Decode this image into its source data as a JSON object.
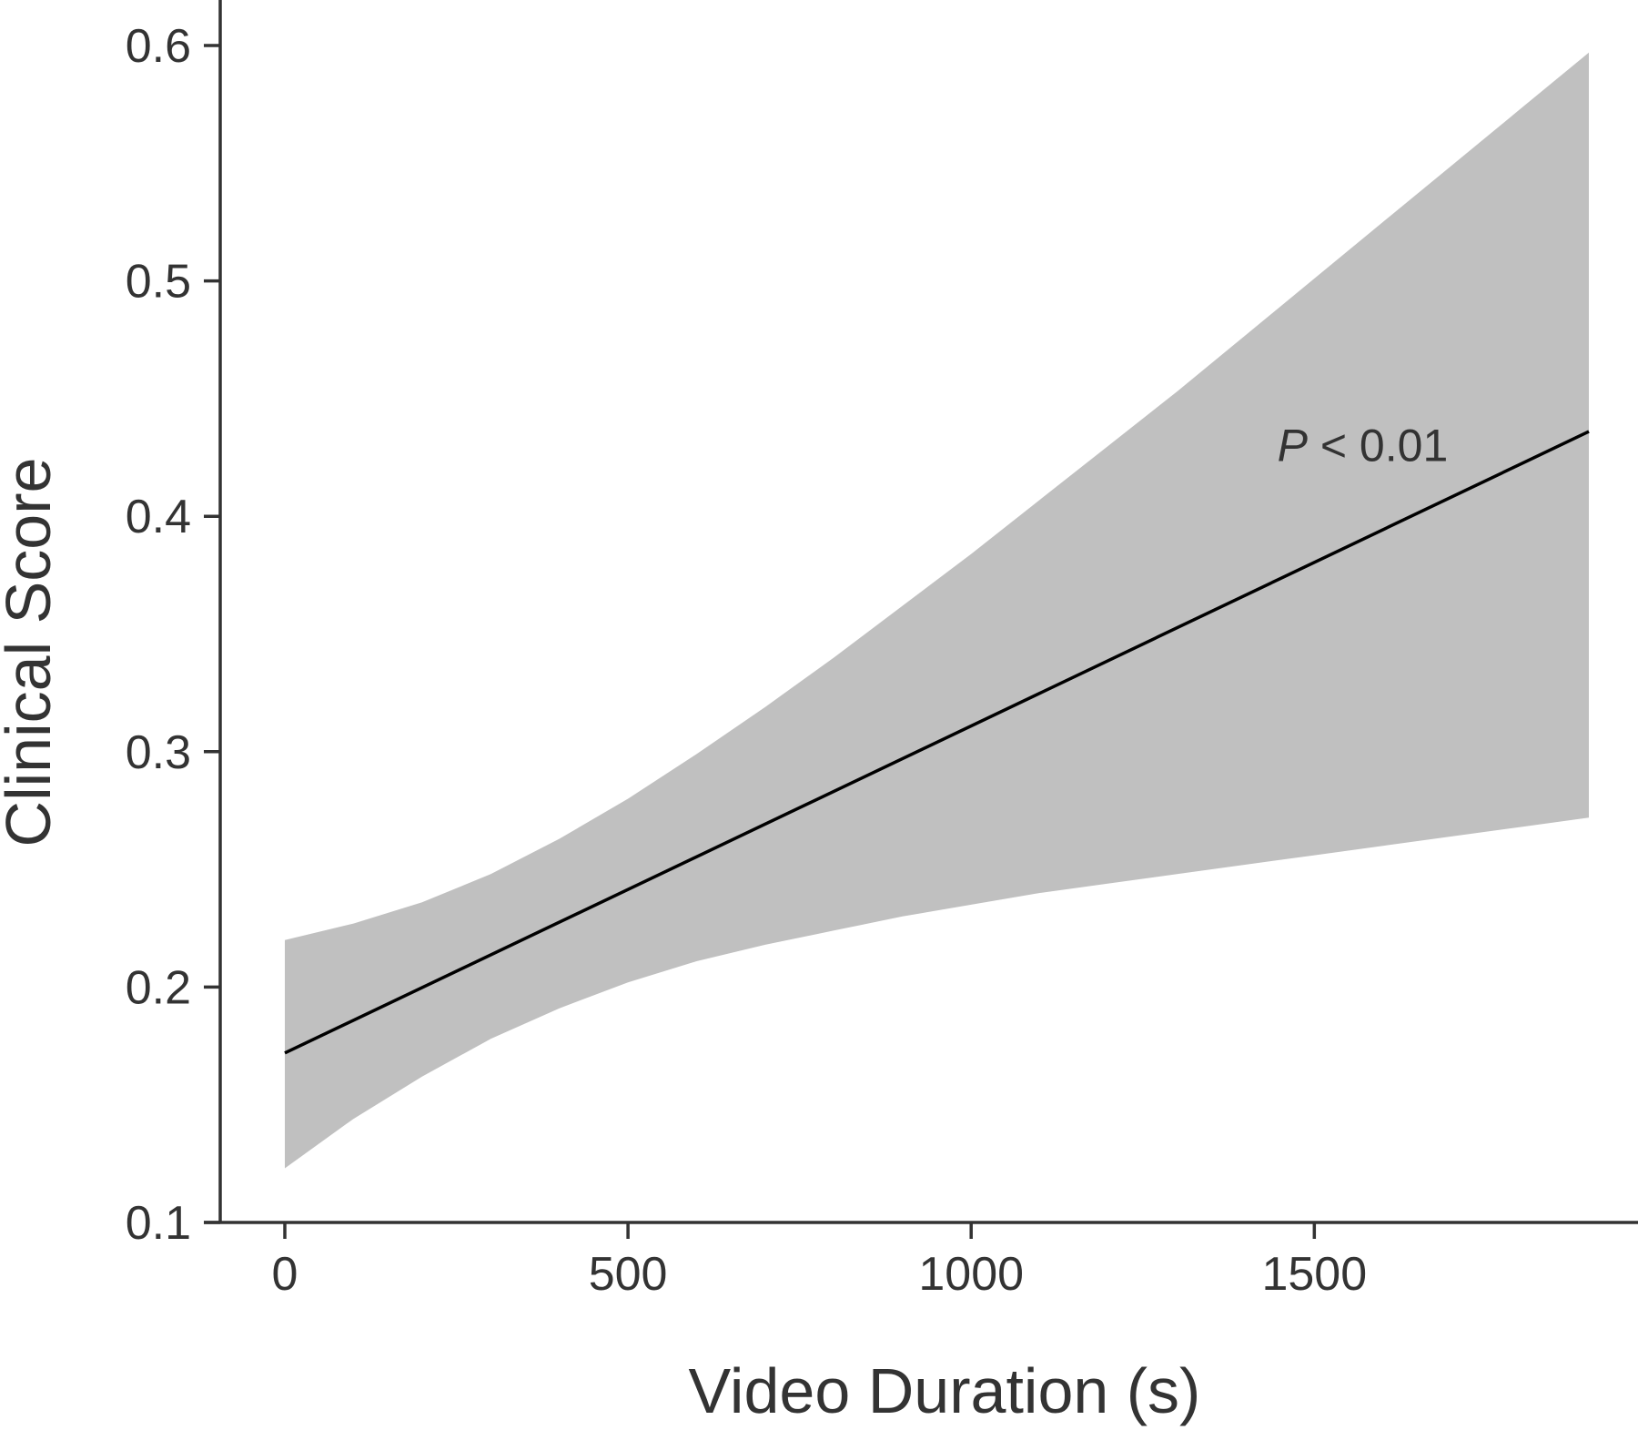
{
  "chart_data": {
    "type": "line",
    "xlabel": "Video Duration (s)",
    "ylabel": "Clinical Score",
    "xlim": [
      -90,
      1990
    ],
    "ylim": [
      0.1,
      0.6
    ],
    "x_ticks": [
      0,
      500,
      1000,
      1500
    ],
    "y_ticks": [
      0.1,
      0.2,
      0.3,
      0.4,
      0.5,
      0.6
    ],
    "x_tick_labels": [
      "0",
      "500",
      "1000",
      "1500"
    ],
    "y_tick_labels": [
      "0.1",
      "0.2",
      "0.3",
      "0.4",
      "0.5",
      "0.6"
    ],
    "grid": false,
    "series": [
      {
        "x": [
          0,
          1900
        ],
        "y": [
          0.172,
          0.436
        ],
        "color": "#000000"
      }
    ],
    "confidence_band": {
      "x": [
        0,
        100,
        200,
        300,
        400,
        500,
        600,
        700,
        800,
        900,
        1000,
        1100,
        1200,
        1300,
        1400,
        1500,
        1600,
        1700,
        1800,
        1900
      ],
      "lower": [
        0.123,
        0.144,
        0.162,
        0.178,
        0.191,
        0.202,
        0.211,
        0.218,
        0.224,
        0.23,
        0.235,
        0.24,
        0.244,
        0.248,
        0.252,
        0.256,
        0.26,
        0.264,
        0.268,
        0.272
      ],
      "upper": [
        0.22,
        0.227,
        0.236,
        0.248,
        0.263,
        0.28,
        0.299,
        0.319,
        0.34,
        0.362,
        0.384,
        0.407,
        0.43,
        0.453,
        0.477,
        0.501,
        0.525,
        0.549,
        0.573,
        0.597
      ],
      "color": "#c0c0c0"
    },
    "annotation": {
      "italic_part": "P",
      "rest": " < 0.01",
      "x": 1450,
      "y": 0.43
    },
    "colors": {
      "axis": "#333333",
      "band": "#c0c0c0",
      "line": "#000000"
    }
  }
}
